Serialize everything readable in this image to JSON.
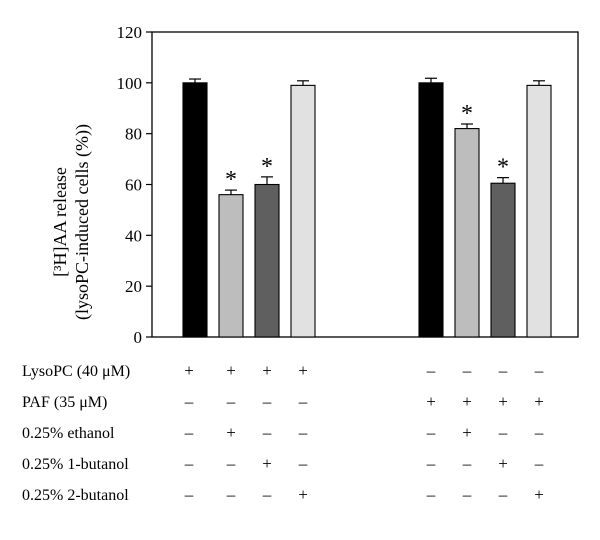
{
  "chart_data": {
    "type": "bar",
    "ylabel": "[³H]AA release",
    "ylabel_line2": "(lysoPC-induced cells (%))",
    "ylim": [
      0,
      120
    ],
    "yticks": [
      "0",
      "20",
      "40",
      "60",
      "80",
      "100",
      "120"
    ],
    "groups": [
      {
        "bars": [
          {
            "value": 100,
            "error": 1.5,
            "color": "#000000",
            "significant": false
          },
          {
            "value": 56,
            "error": 1.8,
            "color": "#bdbdbd",
            "significant": true
          },
          {
            "value": 60,
            "error": 3.0,
            "color": "#5f5f5f",
            "significant": true
          },
          {
            "value": 99,
            "error": 1.8,
            "color": "#e1e1e1",
            "significant": false
          }
        ]
      },
      {
        "bars": [
          {
            "value": 100,
            "error": 1.8,
            "color": "#000000",
            "significant": false
          },
          {
            "value": 82,
            "error": 1.8,
            "color": "#bdbdbd",
            "significant": true
          },
          {
            "value": 60.5,
            "error": 2.2,
            "color": "#5f5f5f",
            "significant": true
          },
          {
            "value": 99,
            "error": 1.8,
            "color": "#e1e1e1",
            "significant": false
          }
        ]
      }
    ],
    "significance_marker": "*",
    "condition_rows": [
      {
        "label": "LysoPC (40 μM)",
        "signs": [
          "+",
          "+",
          "+",
          "+",
          "–",
          "–",
          "–",
          "–"
        ]
      },
      {
        "label": "PAF (35 μM)",
        "signs": [
          "–",
          "–",
          "–",
          "–",
          "+",
          "+",
          "+",
          "+"
        ]
      },
      {
        "label": "0.25% ethanol",
        "signs": [
          "–",
          "+",
          "–",
          "–",
          "–",
          "+",
          "–",
          "–"
        ]
      },
      {
        "label": "0.25% 1-butanol",
        "signs": [
          "–",
          "–",
          "+",
          "–",
          "–",
          "–",
          "+",
          "–"
        ]
      },
      {
        "label": "0.25% 2-butanol",
        "signs": [
          "–",
          "–",
          "–",
          "+",
          "–",
          "–",
          "–",
          "+"
        ]
      }
    ]
  }
}
